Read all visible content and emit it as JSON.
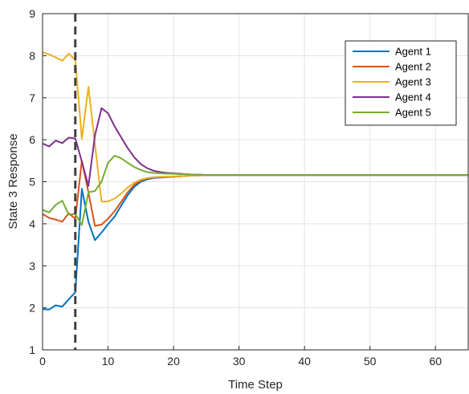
{
  "chart_data": {
    "type": "line",
    "title": "",
    "xlabel": "Time Step",
    "ylabel": "State 3 Response",
    "xlim": [
      0,
      65
    ],
    "ylim": [
      1,
      9
    ],
    "xticks": [
      0,
      10,
      20,
      30,
      40,
      50,
      60
    ],
    "yticks": [
      1,
      2,
      3,
      4,
      5,
      6,
      7,
      8,
      9
    ],
    "grid": true,
    "legend_position": "top-right",
    "vline": {
      "x": 5,
      "style": "dashed",
      "color": "#404040"
    },
    "x": [
      0,
      1,
      2,
      3,
      4,
      5,
      6,
      7,
      8,
      9,
      10,
      11,
      12,
      13,
      14,
      15,
      16,
      17,
      18,
      19,
      20,
      21,
      22,
      23,
      24,
      25,
      26,
      27,
      28,
      29,
      30,
      35,
      40,
      45,
      50,
      55,
      60,
      65
    ],
    "series": [
      {
        "name": "Agent 1",
        "color": "#0072BD",
        "values": [
          1.97,
          1.96,
          2.06,
          2.03,
          2.2,
          2.37,
          4.83,
          4.05,
          3.61,
          3.79,
          3.99,
          4.17,
          4.43,
          4.68,
          4.88,
          5.0,
          5.06,
          5.09,
          5.1,
          5.11,
          5.12,
          5.13,
          5.14,
          5.15,
          5.15,
          5.16,
          5.16,
          5.16,
          5.16,
          5.16,
          5.16,
          5.16,
          5.16,
          5.16,
          5.16,
          5.16,
          5.16,
          5.16
        ]
      },
      {
        "name": "Agent 2",
        "color": "#D95319",
        "values": [
          4.23,
          4.14,
          4.1,
          4.05,
          4.25,
          4.12,
          5.5,
          4.75,
          3.95,
          3.98,
          4.12,
          4.3,
          4.52,
          4.75,
          4.93,
          5.03,
          5.08,
          5.1,
          5.11,
          5.12,
          5.12,
          5.13,
          5.14,
          5.15,
          5.15,
          5.16,
          5.16,
          5.16,
          5.16,
          5.16,
          5.16,
          5.16,
          5.16,
          5.16,
          5.16,
          5.16,
          5.16,
          5.16
        ]
      },
      {
        "name": "Agent 3",
        "color": "#EDB120",
        "values": [
          8.08,
          8.03,
          7.96,
          7.88,
          8.05,
          7.9,
          6.02,
          7.26,
          5.9,
          4.53,
          4.53,
          4.6,
          4.72,
          4.86,
          4.98,
          5.05,
          5.09,
          5.11,
          5.12,
          5.12,
          5.13,
          5.13,
          5.14,
          5.15,
          5.15,
          5.16,
          5.16,
          5.16,
          5.16,
          5.16,
          5.16,
          5.16,
          5.16,
          5.16,
          5.16,
          5.16,
          5.16,
          5.16
        ]
      },
      {
        "name": "Agent 4",
        "color": "#7E2F8E",
        "values": [
          5.91,
          5.84,
          5.98,
          5.92,
          6.05,
          6.03,
          5.48,
          4.9,
          6.1,
          6.75,
          6.63,
          6.32,
          6.06,
          5.8,
          5.58,
          5.42,
          5.32,
          5.26,
          5.23,
          5.21,
          5.2,
          5.19,
          5.18,
          5.17,
          5.17,
          5.16,
          5.16,
          5.16,
          5.16,
          5.16,
          5.16,
          5.16,
          5.16,
          5.16,
          5.16,
          5.16,
          5.16,
          5.16
        ]
      },
      {
        "name": "Agent 5",
        "color": "#77AC30",
        "values": [
          4.33,
          4.27,
          4.45,
          4.55,
          4.22,
          4.23,
          3.97,
          4.75,
          4.78,
          5.0,
          5.45,
          5.62,
          5.56,
          5.45,
          5.35,
          5.28,
          5.23,
          5.21,
          5.2,
          5.19,
          5.19,
          5.18,
          5.18,
          5.17,
          5.17,
          5.16,
          5.16,
          5.16,
          5.16,
          5.16,
          5.16,
          5.16,
          5.16,
          5.16,
          5.16,
          5.16,
          5.16,
          5.16
        ]
      }
    ]
  }
}
